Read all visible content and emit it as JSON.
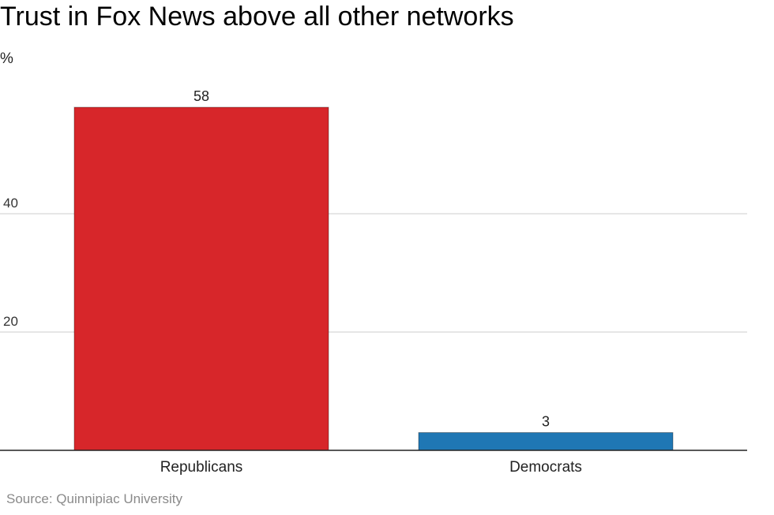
{
  "chart_data": {
    "type": "bar",
    "title": "Trust in Fox News above all other networks",
    "ylabel": "%",
    "xlabel": "",
    "categories": [
      "Republicans",
      "Democrats"
    ],
    "values": [
      58,
      3
    ],
    "colors": [
      "#d7262a",
      "#1f77b4"
    ],
    "ylim": [
      0,
      60
    ],
    "yticks": [
      20,
      40
    ],
    "grid": true,
    "source": "Source: Quinnipiac University"
  }
}
